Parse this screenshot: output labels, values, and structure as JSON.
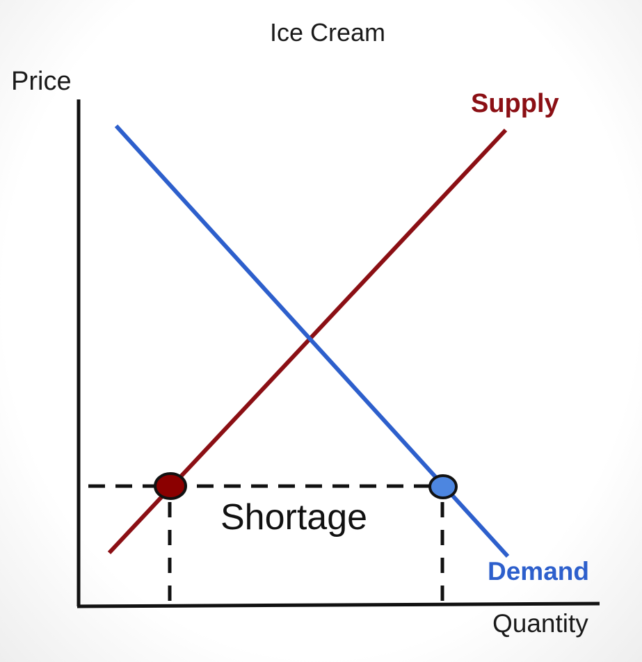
{
  "title": "Ice Cream",
  "axes": {
    "y_label": "Price",
    "x_label": "Quantity"
  },
  "curves": {
    "supply": {
      "label": "Supply",
      "color": "#8b0f14"
    },
    "demand": {
      "label": "Demand",
      "color": "#2d5fcc"
    }
  },
  "annotation": {
    "shortage_label": "Shortage"
  },
  "markers": {
    "quantity_supplied_color": "#8b0000",
    "quantity_demanded_color": "#4d86e0"
  }
}
